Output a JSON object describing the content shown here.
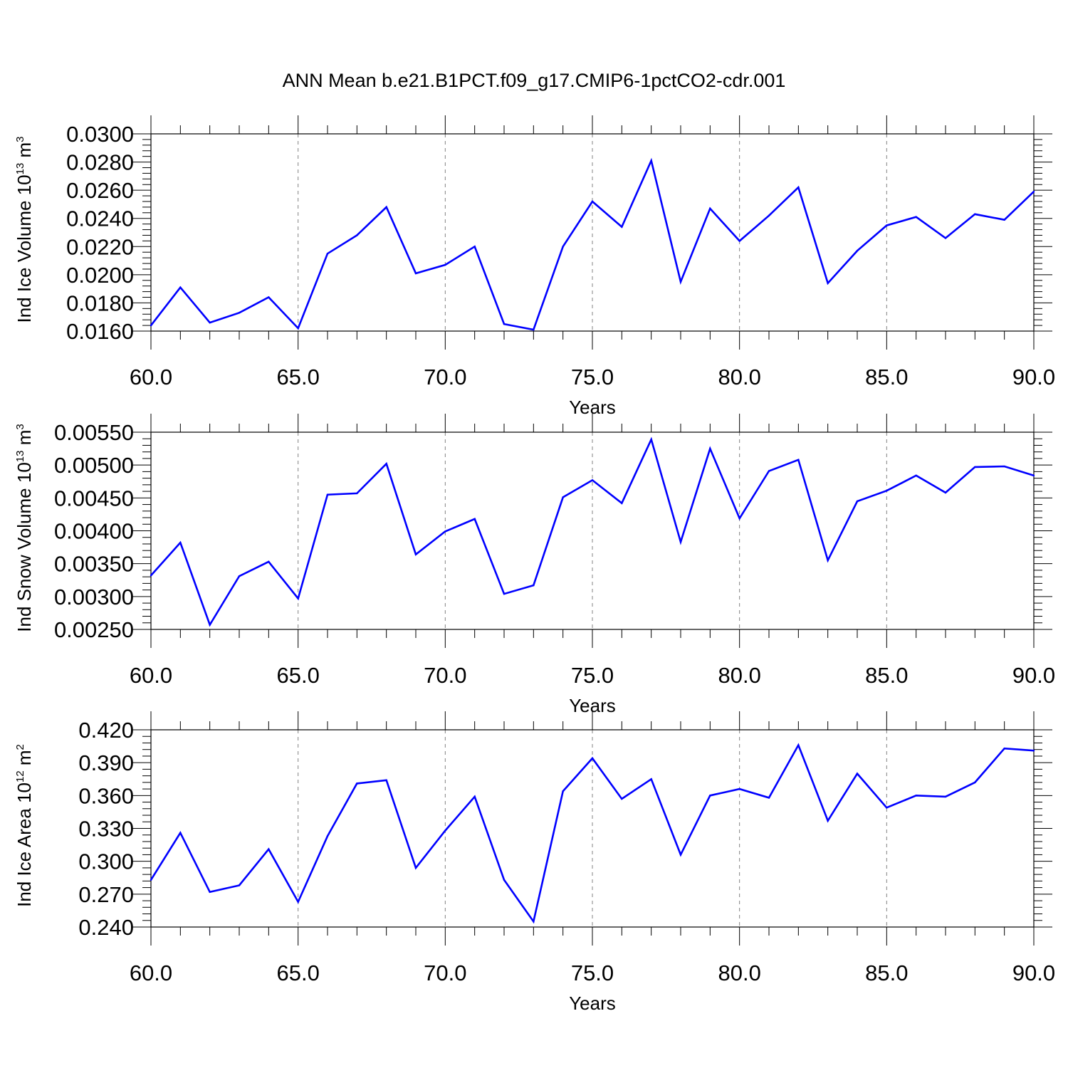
{
  "title": "ANN Mean b.e21.B1PCT.f09_g17.CMIP6-1pctCO2-cdr.001",
  "colors": {
    "line": "#0000ff",
    "axis": "#000000",
    "grid": "#808080"
  },
  "chart_data": [
    {
      "type": "line",
      "xlabel": "Years",
      "ylabel": {
        "main": "Ind Ice Volume 10",
        "exponent": "13",
        "unit": " m",
        "unit_exponent": "3"
      },
      "xlim": [
        60,
        90
      ],
      "ylim": [
        0.016,
        0.03
      ],
      "xticks": [
        "60.0",
        "65.0",
        "70.0",
        "75.0",
        "80.0",
        "85.0",
        "90.0"
      ],
      "yticks": [
        "0.0160",
        "0.0180",
        "0.0200",
        "0.0220",
        "0.0240",
        "0.0260",
        "0.0280",
        "0.0300"
      ],
      "grid": "vertical dashed at major x ticks",
      "x": [
        60,
        61,
        62,
        63,
        64,
        65,
        66,
        67,
        68,
        69,
        70,
        71,
        72,
        73,
        74,
        75,
        76,
        77,
        78,
        79,
        80,
        81,
        82,
        83,
        84,
        85,
        86,
        87,
        88,
        89,
        90
      ],
      "series": [
        {
          "values": [
            0.0164,
            0.0191,
            0.0166,
            0.0173,
            0.0184,
            0.0162,
            0.0215,
            0.0228,
            0.0248,
            0.0201,
            0.0207,
            0.022,
            0.0165,
            0.0161,
            0.022,
            0.0252,
            0.0234,
            0.0281,
            0.0195,
            0.0247,
            0.0224,
            0.0242,
            0.0262,
            0.0194,
            0.0217,
            0.0235,
            0.0241,
            0.0226,
            0.0243,
            0.0239,
            0.0259
          ]
        }
      ]
    },
    {
      "type": "line",
      "xlabel": "Years",
      "ylabel": {
        "main": "Ind Snow Volume 10",
        "exponent": "13",
        "unit": " m",
        "unit_exponent": "3"
      },
      "xlim": [
        60,
        90
      ],
      "ylim": [
        0.0025,
        0.0055
      ],
      "xticks": [
        "60.0",
        "65.0",
        "70.0",
        "75.0",
        "80.0",
        "85.0",
        "90.0"
      ],
      "yticks": [
        "0.00250",
        "0.00300",
        "0.00350",
        "0.00400",
        "0.00450",
        "0.00500",
        "0.00550"
      ],
      "grid": "vertical dashed at major x ticks",
      "x": [
        60,
        61,
        62,
        63,
        64,
        65,
        66,
        67,
        68,
        69,
        70,
        71,
        72,
        73,
        74,
        75,
        76,
        77,
        78,
        79,
        80,
        81,
        82,
        83,
        84,
        85,
        86,
        87,
        88,
        89,
        90
      ],
      "series": [
        {
          "values": [
            0.00332,
            0.00382,
            0.00257,
            0.00331,
            0.00353,
            0.00297,
            0.00455,
            0.00457,
            0.00502,
            0.00364,
            0.00399,
            0.00418,
            0.00304,
            0.00317,
            0.00451,
            0.00477,
            0.00442,
            0.00539,
            0.00383,
            0.00525,
            0.00419,
            0.00491,
            0.00508,
            0.00355,
            0.00445,
            0.00461,
            0.00484,
            0.00458,
            0.00497,
            0.00498,
            0.00484
          ]
        }
      ]
    },
    {
      "type": "line",
      "xlabel": "Years",
      "ylabel": {
        "main": "Ind Ice Area 10",
        "exponent": "12",
        "unit": " m",
        "unit_exponent": "2"
      },
      "xlim": [
        60,
        90
      ],
      "ylim": [
        0.24,
        0.42
      ],
      "xticks": [
        "60.0",
        "65.0",
        "70.0",
        "75.0",
        "80.0",
        "85.0",
        "90.0"
      ],
      "yticks": [
        "0.240",
        "0.270",
        "0.300",
        "0.330",
        "0.360",
        "0.390",
        "0.420"
      ],
      "grid": "vertical dashed at major x ticks",
      "x": [
        60,
        61,
        62,
        63,
        64,
        65,
        66,
        67,
        68,
        69,
        70,
        71,
        72,
        73,
        74,
        75,
        76,
        77,
        78,
        79,
        80,
        81,
        82,
        83,
        84,
        85,
        86,
        87,
        88,
        89,
        90
      ],
      "series": [
        {
          "values": [
            0.283,
            0.326,
            0.272,
            0.278,
            0.311,
            0.263,
            0.323,
            0.371,
            0.374,
            0.294,
            0.328,
            0.359,
            0.283,
            0.245,
            0.364,
            0.394,
            0.357,
            0.375,
            0.306,
            0.36,
            0.366,
            0.358,
            0.406,
            0.337,
            0.38,
            0.349,
            0.36,
            0.359,
            0.372,
            0.403,
            0.401
          ]
        }
      ]
    }
  ]
}
